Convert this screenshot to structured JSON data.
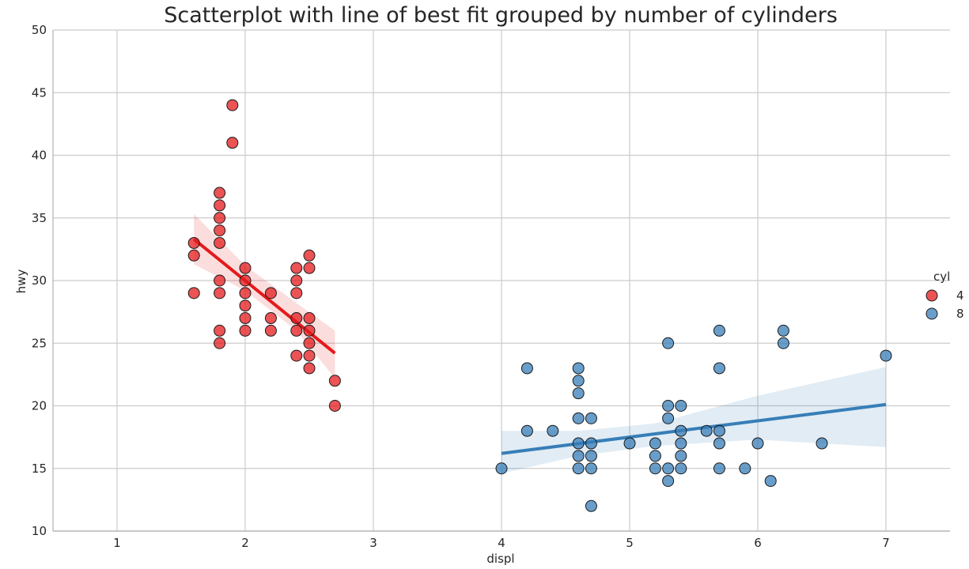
{
  "chart_data": {
    "type": "scatter",
    "title": "Scatterplot with line of best fit grouped by number of cylinders",
    "xlabel": "displ",
    "ylabel": "hwy",
    "xlim": [
      0.5,
      7.5
    ],
    "ylim": [
      10,
      50
    ],
    "xticks": [
      "1",
      "2",
      "3",
      "4",
      "5",
      "6",
      "7"
    ],
    "yticks": [
      "10",
      "15",
      "20",
      "25",
      "30",
      "35",
      "40",
      "45",
      "50"
    ],
    "grid": true,
    "legend": {
      "title": "cyl",
      "placement": "right"
    },
    "colors": {
      "4": "#e41a1c",
      "8": "#377eb8",
      "grid": "#cccccc",
      "axis": "#b0b0b0"
    },
    "series": [
      {
        "name": "4",
        "points": [
          [
            1.6,
            33
          ],
          [
            1.6,
            32
          ],
          [
            1.6,
            29
          ],
          [
            1.8,
            37
          ],
          [
            1.8,
            36
          ],
          [
            1.8,
            35
          ],
          [
            1.8,
            34
          ],
          [
            1.8,
            33
          ],
          [
            1.8,
            30
          ],
          [
            1.8,
            29
          ],
          [
            1.8,
            26
          ],
          [
            1.8,
            25
          ],
          [
            1.9,
            44
          ],
          [
            1.9,
            41
          ],
          [
            2.0,
            31
          ],
          [
            2.0,
            30
          ],
          [
            2.0,
            29
          ],
          [
            2.0,
            28
          ],
          [
            2.0,
            27
          ],
          [
            2.0,
            26
          ],
          [
            2.2,
            29
          ],
          [
            2.2,
            27
          ],
          [
            2.2,
            26
          ],
          [
            2.4,
            31
          ],
          [
            2.4,
            30
          ],
          [
            2.4,
            29
          ],
          [
            2.4,
            27
          ],
          [
            2.4,
            26
          ],
          [
            2.4,
            24
          ],
          [
            2.5,
            32
          ],
          [
            2.5,
            31
          ],
          [
            2.5,
            27
          ],
          [
            2.5,
            26
          ],
          [
            2.5,
            25
          ],
          [
            2.5,
            24
          ],
          [
            2.5,
            23
          ],
          [
            2.7,
            22
          ],
          [
            2.7,
            20
          ]
        ],
        "fit": {
          "x": [
            1.6,
            2.7
          ],
          "y": [
            33.3,
            24.2
          ]
        },
        "ci": {
          "x": [
            1.6,
            2.0,
            2.4,
            2.7
          ],
          "lower": [
            31.3,
            29.2,
            26.0,
            22.2
          ],
          "upper": [
            35.3,
            31.2,
            28.2,
            26.0
          ]
        }
      },
      {
        "name": "8",
        "points": [
          [
            4.0,
            15
          ],
          [
            4.2,
            23
          ],
          [
            4.2,
            18
          ],
          [
            4.4,
            18
          ],
          [
            4.6,
            23
          ],
          [
            4.6,
            22
          ],
          [
            4.6,
            21
          ],
          [
            4.6,
            19
          ],
          [
            4.6,
            17
          ],
          [
            4.6,
            16
          ],
          [
            4.6,
            15
          ],
          [
            4.7,
            19
          ],
          [
            4.7,
            17
          ],
          [
            4.7,
            16
          ],
          [
            4.7,
            15
          ],
          [
            4.7,
            12
          ],
          [
            5.0,
            17
          ],
          [
            5.2,
            17
          ],
          [
            5.2,
            16
          ],
          [
            5.2,
            15
          ],
          [
            5.3,
            25
          ],
          [
            5.3,
            20
          ],
          [
            5.3,
            19
          ],
          [
            5.3,
            15
          ],
          [
            5.3,
            14
          ],
          [
            5.4,
            20
          ],
          [
            5.4,
            18
          ],
          [
            5.4,
            17
          ],
          [
            5.4,
            16
          ],
          [
            5.4,
            15
          ],
          [
            5.6,
            18
          ],
          [
            5.7,
            26
          ],
          [
            5.7,
            23
          ],
          [
            5.7,
            18
          ],
          [
            5.7,
            17
          ],
          [
            5.7,
            15
          ],
          [
            5.9,
            15
          ],
          [
            6.0,
            17
          ],
          [
            6.1,
            14
          ],
          [
            6.2,
            26
          ],
          [
            6.2,
            25
          ],
          [
            6.5,
            17
          ],
          [
            7.0,
            24
          ]
        ],
        "fit": {
          "x": [
            4.0,
            7.0
          ],
          "y": [
            16.2,
            20.1
          ]
        },
        "ci": {
          "x": [
            4.0,
            4.6,
            5.2,
            6.0,
            7.0
          ],
          "lower": [
            14.6,
            16.0,
            16.8,
            17.3,
            16.7
          ],
          "upper": [
            18.0,
            18.0,
            18.6,
            20.8,
            23.1
          ]
        }
      }
    ]
  }
}
